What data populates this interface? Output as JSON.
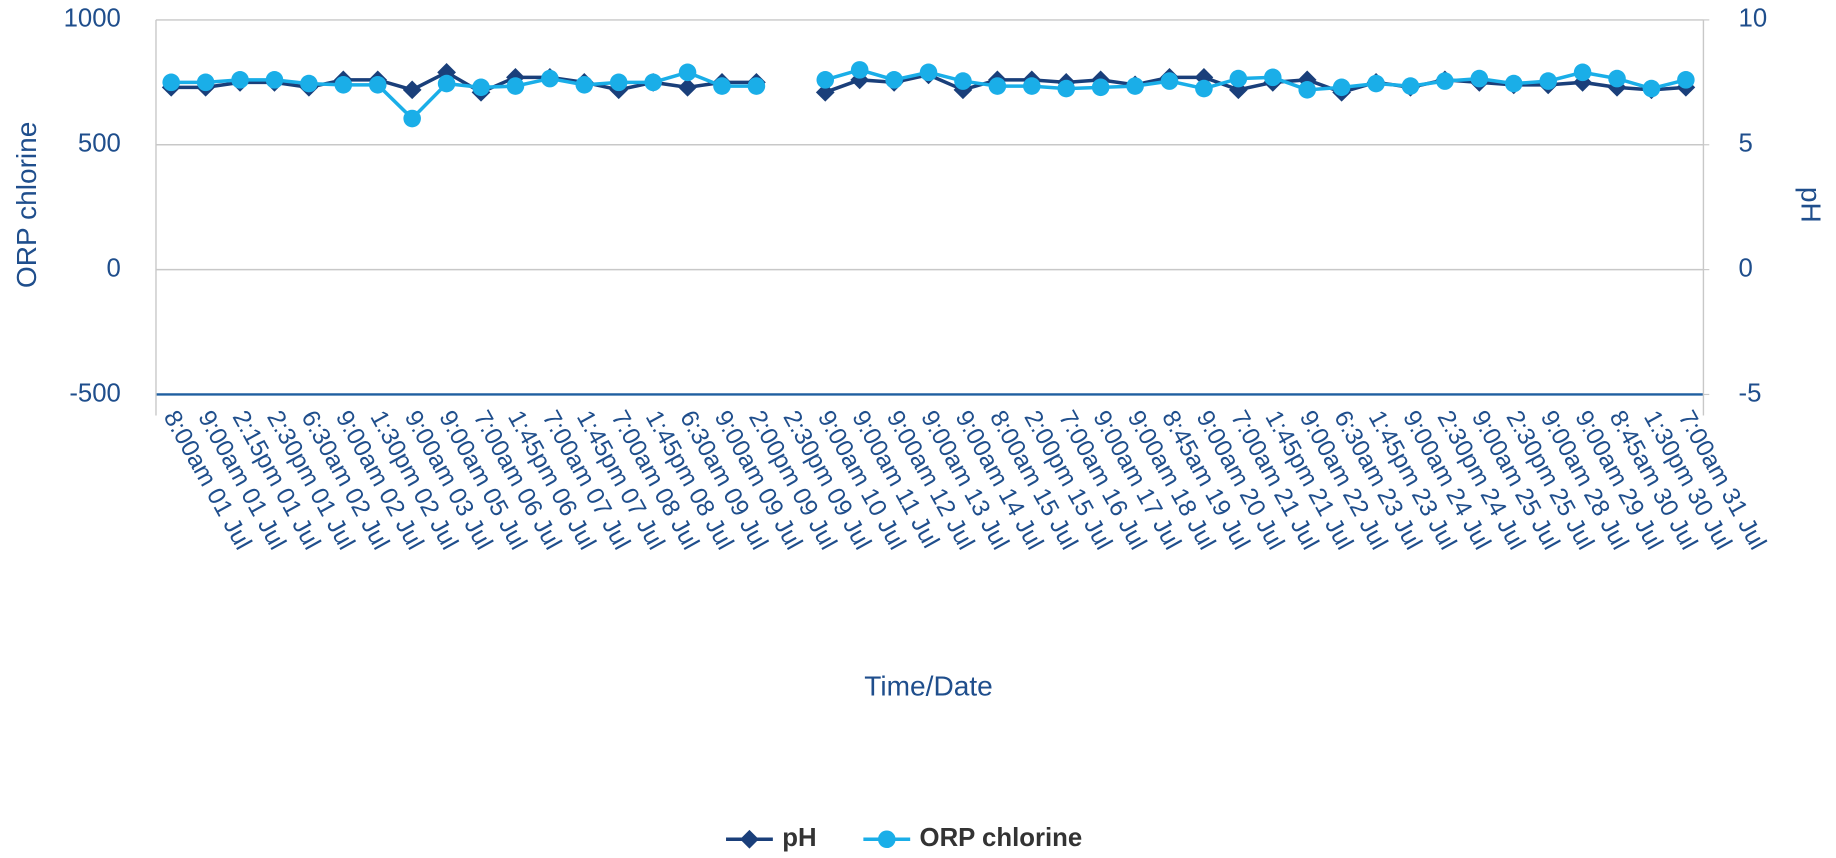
{
  "chart_data": {
    "type": "line",
    "categories": [
      "8:00am 01 Jul",
      "9:00am 01 Jul",
      "2:15pm 01 Jul",
      "2:30pm 01 Jul",
      "6:30am 02 Jul",
      "9:00am 02 Jul",
      "1:30pm 02 Jul",
      "9:00am 03 Jul",
      "9:00am 05 Jul",
      "7:00am 06 Jul",
      "1:45pm 06 Jul",
      "7:00am 07 Jul",
      "1:45pm 07 Jul",
      "7:00am 08 Jul",
      "1:45pm 08 Jul",
      "6:30am 09 Jul",
      "9:00am 09 Jul",
      "2:00pm 09 Jul",
      "2:30pm 09 Jul",
      "9:00am 10 Jul",
      "9:00am 11 Jul",
      "9:00am 12 Jul",
      "9:00am 13 Jul",
      "9:00am 14 Jul",
      "8:00am 15 Jul",
      "2:00pm 15 Jul",
      "7:00am 16 Jul",
      "9:00am 17 Jul",
      "9:00am 18 Jul",
      "8:45am 19 Jul",
      "9:00am 20 Jul",
      "7:00am 21 Jul",
      "1:45pm 21 Jul",
      "9:00am 22 Jul",
      "6:30am 23 Jul",
      "1:45pm 23 Jul",
      "9:00am 24 Jul",
      "2:30pm 24 Jul",
      "9:00am 25 Jul",
      "2:30pm 25 Jul",
      "9:00am 28 Jul",
      "9:00am 29 Jul",
      "8:45am 30 Jul",
      "1:30pm 30 Jul",
      "7:00am 31 Jul"
    ],
    "series": [
      {
        "name": "pH",
        "color": "#1a3f7a",
        "marker": "diamond",
        "axis": "y2",
        "values": [
          7.3,
          7.3,
          7.5,
          7.5,
          7.3,
          7.6,
          7.6,
          7.2,
          7.9,
          7.1,
          7.7,
          7.7,
          7.5,
          7.2,
          7.5,
          7.3,
          7.5,
          7.5,
          null,
          7.1,
          7.6,
          7.5,
          7.8,
          7.2,
          7.6,
          7.6,
          7.5,
          7.6,
          7.4,
          7.7,
          7.7,
          7.2,
          7.5,
          7.6,
          7.1,
          7.5,
          7.3,
          7.6,
          7.5,
          7.4,
          7.4,
          7.5,
          7.3,
          7.2,
          7.3
        ]
      },
      {
        "name": "ORP chlorine",
        "color": "#1aaee8",
        "marker": "circle",
        "values": [
          750,
          750,
          760,
          760,
          745,
          740,
          740,
          605,
          745,
          730,
          735,
          765,
          740,
          750,
          750,
          790,
          735,
          735,
          null,
          760,
          800,
          760,
          790,
          755,
          735,
          735,
          725,
          730,
          735,
          755,
          725,
          765,
          770,
          720,
          730,
          745,
          735,
          755,
          765,
          745,
          755,
          790,
          765,
          725,
          760
        ]
      }
    ],
    "ylabel": "ORP chlorine",
    "y2label": "pH",
    "xlabel": "Time/Date",
    "ylim": [
      -500,
      1000
    ],
    "yticks": [
      -500,
      0,
      500,
      1000
    ],
    "y2lim": [
      -5,
      10
    ],
    "y2ticks": [
      -5,
      0,
      5,
      10
    ],
    "grid": true,
    "legend": "bottom"
  }
}
